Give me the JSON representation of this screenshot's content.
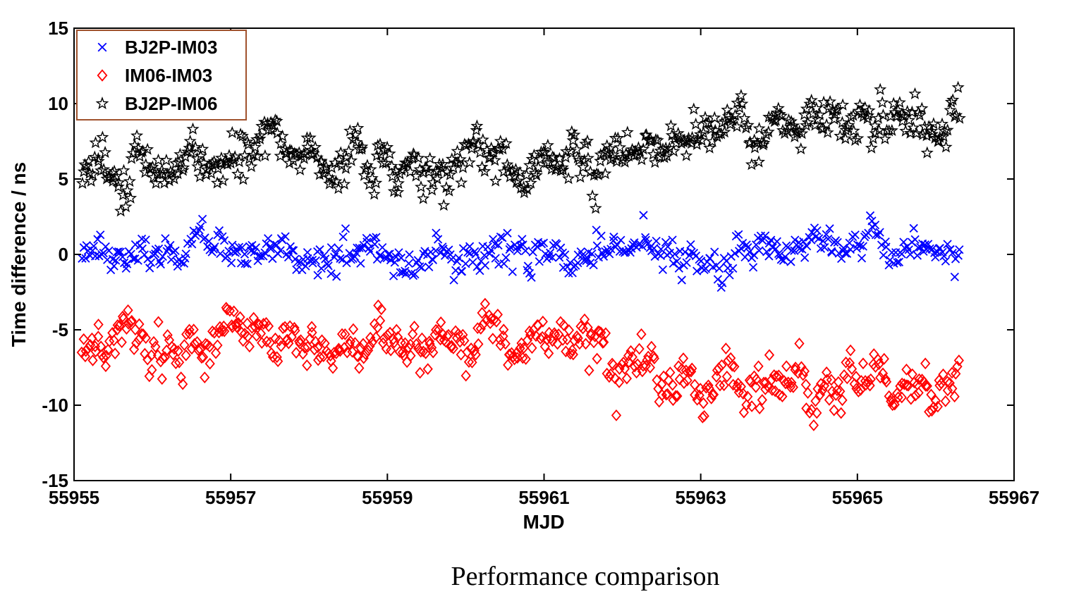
{
  "caption": "Performance comparison",
  "chart_data": {
    "type": "scatter",
    "title": "",
    "xlabel": "MJD",
    "ylabel": "Time difference / ns",
    "xlim": [
      55955,
      55967
    ],
    "ylim": [
      -15,
      15
    ],
    "xticks": [
      55955,
      55957,
      55959,
      55961,
      55963,
      55965,
      55967
    ],
    "yticks": [
      -15,
      -10,
      -5,
      0,
      5,
      10,
      15
    ],
    "grid": false,
    "legend_position": "top-left",
    "x_range_of_points": [
      55955.1,
      55966.3
    ],
    "series": [
      {
        "name": "BJ2P-IM03",
        "marker": "x",
        "color": "#0000ff",
        "profile": [
          [
            55955.1,
            0.1
          ],
          [
            55956.0,
            0.2
          ],
          [
            55957.0,
            0.2
          ],
          [
            55958.0,
            0.2
          ],
          [
            55959.0,
            0.2
          ],
          [
            55960.0,
            0.1
          ],
          [
            55961.0,
            0.1
          ],
          [
            55962.0,
            0.0
          ],
          [
            55963.0,
            0.0
          ],
          [
            55964.0,
            0.3
          ],
          [
            55965.0,
            0.3
          ],
          [
            55966.3,
            0.0
          ]
        ],
        "noise": 0.75,
        "count": 520
      },
      {
        "name": "IM06-IM03",
        "marker": "diamond",
        "color": "#ff0000",
        "profile": [
          [
            55955.1,
            -5.2
          ],
          [
            55956.0,
            -6.0
          ],
          [
            55957.0,
            -5.8
          ],
          [
            55958.0,
            -6.0
          ],
          [
            55959.0,
            -6.0
          ],
          [
            55960.0,
            -5.8
          ],
          [
            55961.0,
            -5.8
          ],
          [
            55961.5,
            -6.2
          ],
          [
            55962.0,
            -7.2
          ],
          [
            55962.5,
            -8.0
          ],
          [
            55963.0,
            -8.8
          ],
          [
            55964.0,
            -8.5
          ],
          [
            55965.0,
            -8.8
          ],
          [
            55966.3,
            -8.8
          ]
        ],
        "noise": 1.0,
        "count": 560
      },
      {
        "name": "BJ2P-IM06",
        "marker": "star",
        "color": "#000000",
        "profile": [
          [
            55955.1,
            5.8
          ],
          [
            55956.0,
            6.0
          ],
          [
            55957.0,
            6.1
          ],
          [
            55958.0,
            6.3
          ],
          [
            55959.0,
            6.2
          ],
          [
            55960.0,
            6.0
          ],
          [
            55961.0,
            5.8
          ],
          [
            55961.5,
            6.3
          ],
          [
            55962.0,
            7.0
          ],
          [
            55962.5,
            8.0
          ],
          [
            55963.0,
            8.7
          ],
          [
            55964.0,
            9.0
          ],
          [
            55965.0,
            8.9
          ],
          [
            55966.3,
            8.8
          ]
        ],
        "noise": 1.0,
        "count": 560
      }
    ]
  }
}
